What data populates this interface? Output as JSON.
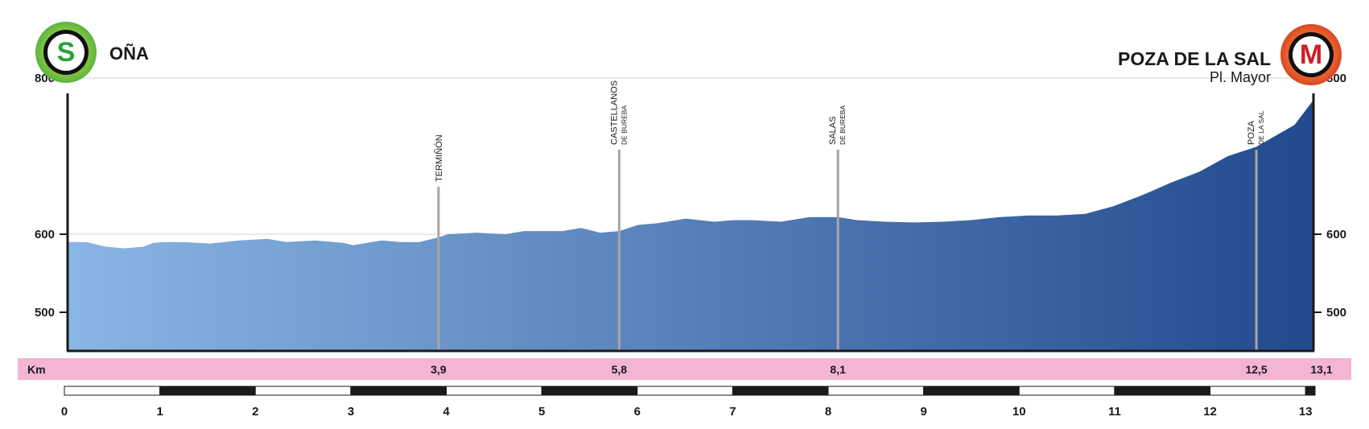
{
  "start": {
    "letter": "S",
    "name": "OÑA"
  },
  "finish": {
    "letter": "M",
    "name": "POZA DE LA SAL",
    "sub": "Pl. Mayor"
  },
  "chart_data": {
    "type": "area",
    "xlabel": "Km",
    "ylim": [
      450,
      950
    ],
    "xlim": [
      0,
      13.1
    ],
    "y_ticks": [
      500,
      600,
      800
    ],
    "x_ticks": [
      0,
      1,
      2,
      3,
      4,
      5,
      6,
      7,
      8,
      9,
      10,
      11,
      12,
      13
    ],
    "grid": true,
    "colors": {
      "start": "#89b6e4",
      "end": "#214a8e",
      "axis_band": "#f4b4d4"
    },
    "profile": {
      "x": [
        0,
        0.2,
        0.4,
        0.6,
        0.8,
        0.9,
        1.0,
        1.2,
        1.5,
        1.8,
        2.1,
        2.3,
        2.6,
        2.9,
        3.0,
        3.3,
        3.5,
        3.7,
        3.9,
        4.0,
        4.3,
        4.6,
        4.8,
        5.0,
        5.2,
        5.4,
        5.6,
        5.8,
        6.0,
        6.2,
        6.5,
        6.8,
        7.0,
        7.2,
        7.5,
        7.8,
        8.1,
        8.3,
        8.6,
        8.9,
        9.2,
        9.5,
        9.8,
        10.1,
        10.4,
        10.7,
        11.0,
        11.3,
        11.6,
        11.9,
        12.2,
        12.5,
        12.7,
        12.9,
        13.0,
        13.1
      ],
      "y": [
        590,
        590,
        584,
        582,
        584,
        589,
        590,
        590,
        588,
        592,
        594,
        590,
        592,
        589,
        586,
        592,
        590,
        590,
        596,
        600,
        602,
        600,
        604,
        604,
        604,
        608,
        602,
        604,
        612,
        614,
        620,
        616,
        618,
        618,
        616,
        622,
        622,
        618,
        616,
        615,
        616,
        618,
        622,
        624,
        624,
        626,
        636,
        650,
        666,
        680,
        700,
        712,
        726,
        740,
        756,
        772
      ]
    },
    "waypoints": [
      {
        "km": 3.9,
        "elev": 596,
        "label": "TERMIÑÓN",
        "sub": ""
      },
      {
        "km": 5.8,
        "elev": 604,
        "label": "CASTELLANOS",
        "sub": "DE BUREBA"
      },
      {
        "km": 8.1,
        "elev": 622,
        "label": "SALAS",
        "sub": "DE BUREBA"
      },
      {
        "km": 12.5,
        "elev": 712,
        "label": "POZA",
        "sub": "DE LA SAL"
      }
    ],
    "finish_km_label": "13,1"
  }
}
